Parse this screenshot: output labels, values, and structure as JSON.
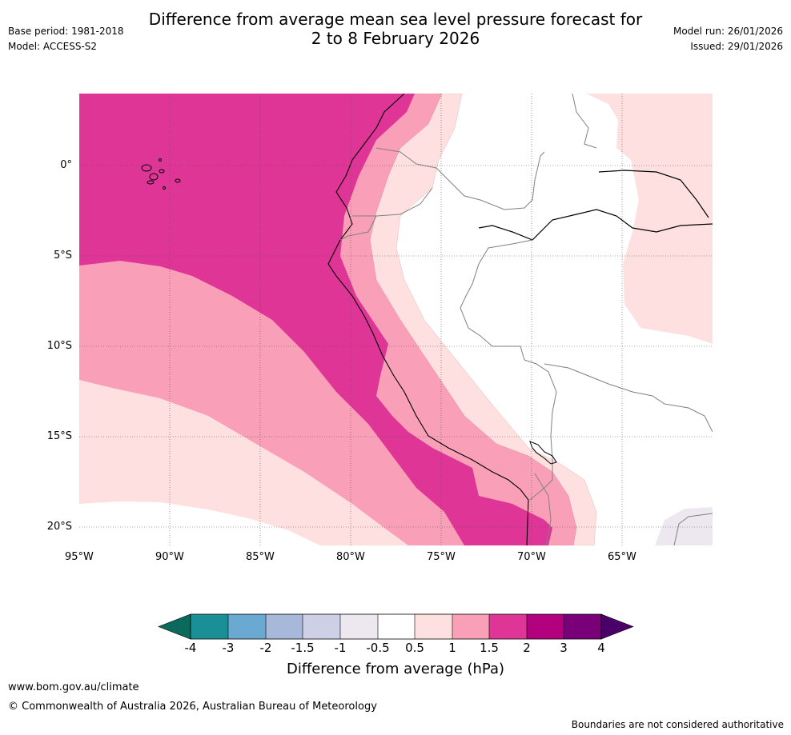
{
  "header": {
    "title_line1": "Difference from average mean sea level pressure forecast for",
    "title_line2": "2 to 8 February 2026",
    "base_period": "Base period: 1981-2018",
    "model": "Model: ACCESS-S2",
    "model_run": "Model run: 26/01/2026",
    "issued": "Issued: 29/01/2026"
  },
  "map": {
    "lat_labels": [
      "0°",
      "5°S",
      "10°S",
      "15°S",
      "20°S"
    ],
    "lon_labels": [
      "95°W",
      "90°W",
      "85°W",
      "80°W",
      "75°W",
      "70°W",
      "65°W"
    ]
  },
  "colorbar": {
    "label": "Difference from average (hPa)",
    "ticks": [
      "-4",
      "-3",
      "-2",
      "-1.5",
      "-1",
      "-0.5",
      "0.5",
      "1",
      "1.5",
      "2",
      "3",
      "4"
    ],
    "colors": {
      "below_min": "#0a6a5c",
      "c1": "#1a9096",
      "c2": "#6aaad2",
      "c3": "#a7b8da",
      "c4": "#cdd0e6",
      "c5": "#ede8ef",
      "c6": "#ffffff",
      "c7": "#fde0df",
      "c8": "#f9a0b8",
      "c9": "#de3597",
      "c10": "#b3007e",
      "c11": "#7a007a",
      "above_max": "#4a0068"
    }
  },
  "footer": {
    "website": "www.bom.gov.au/climate",
    "copyright": "© Commonwealth of Australia 2026, Australian Bureau of Meteorology",
    "disclaimer": "Boundaries are not considered authoritative"
  }
}
